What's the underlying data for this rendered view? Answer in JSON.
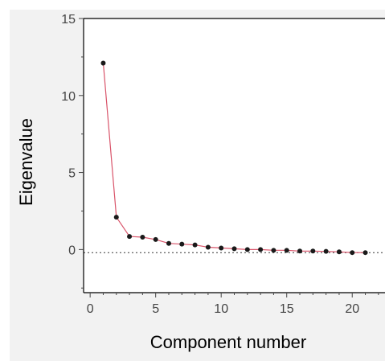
{
  "chart_data": {
    "type": "line",
    "xlabel": "Component number",
    "ylabel": "Eigenvalue",
    "xlim": [
      -0.5,
      22.5
    ],
    "ylim": [
      -2.8,
      15
    ],
    "x_ticks": [
      0,
      5,
      10,
      15,
      20
    ],
    "y_ticks": [
      0,
      5,
      10,
      15
    ],
    "reference_line": {
      "y": -0.2,
      "style": "dotted"
    },
    "line_color": "#d9546a",
    "marker_color": "#1a1a1a",
    "series": [
      {
        "x": [
          1,
          2,
          3,
          4,
          5,
          6,
          7,
          8,
          9,
          10,
          11,
          12,
          13,
          14,
          15,
          16,
          17,
          18,
          19,
          20,
          21
        ],
        "values": [
          12.1,
          2.1,
          0.85,
          0.8,
          0.65,
          0.4,
          0.35,
          0.3,
          0.15,
          0.1,
          0.05,
          0.0,
          0.0,
          -0.05,
          -0.05,
          -0.1,
          -0.1,
          -0.12,
          -0.15,
          -0.2,
          -0.2
        ]
      }
    ]
  }
}
